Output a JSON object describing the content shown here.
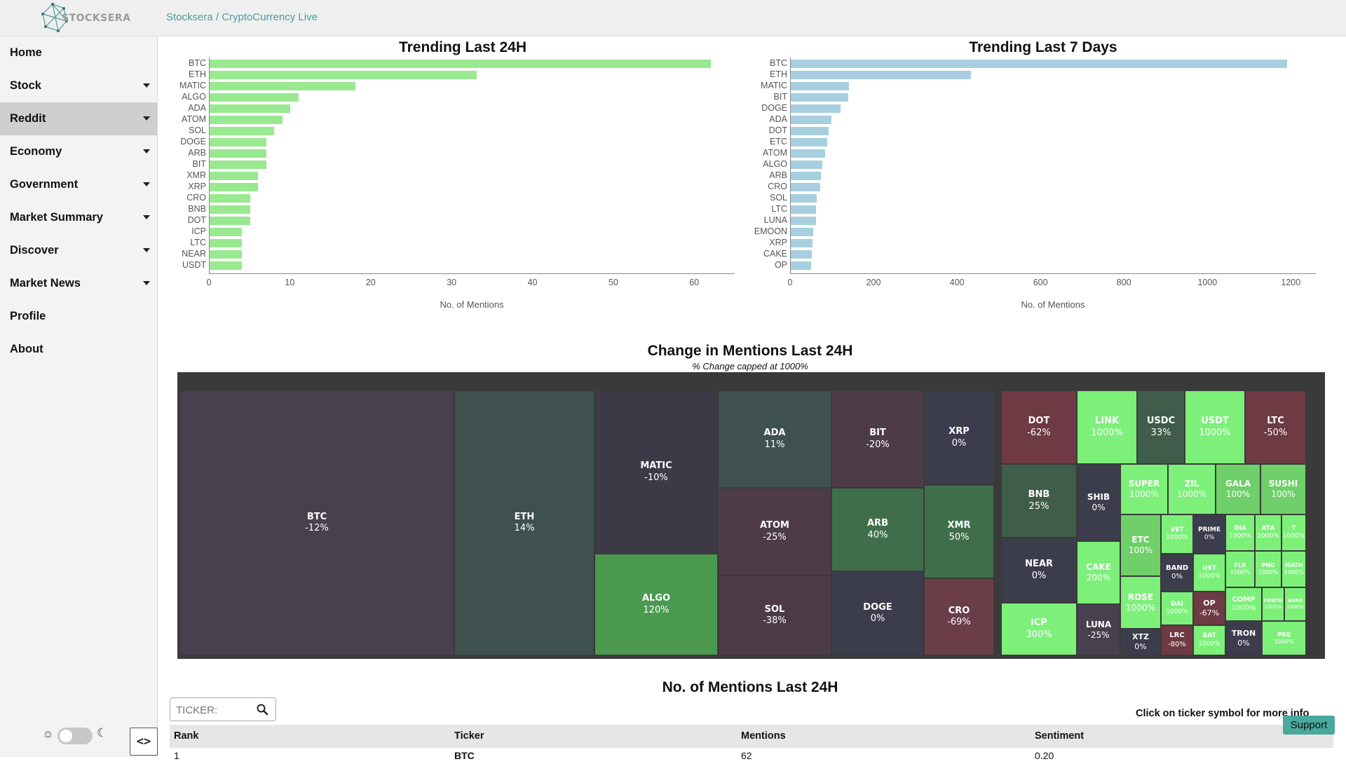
{
  "header": {
    "logo_text": "STOCKSERA",
    "breadcrumb": "Stocksera / CryptoCurrency Live"
  },
  "sidebar": {
    "items": [
      {
        "label": "Home",
        "dropdown": false,
        "active": false
      },
      {
        "label": "Stock",
        "dropdown": true,
        "active": false
      },
      {
        "label": "Reddit",
        "dropdown": true,
        "active": true
      },
      {
        "label": "Economy",
        "dropdown": true,
        "active": false
      },
      {
        "label": "Government",
        "dropdown": true,
        "active": false
      },
      {
        "label": "Market Summary",
        "dropdown": true,
        "active": false
      },
      {
        "label": "Discover",
        "dropdown": true,
        "active": false
      },
      {
        "label": "Market News",
        "dropdown": true,
        "active": false
      },
      {
        "label": "Profile",
        "dropdown": false,
        "active": false
      },
      {
        "label": "About",
        "dropdown": false,
        "active": false
      }
    ],
    "collapse_label": "<>"
  },
  "charts": {
    "chart_data": [
      {
        "type": "bar",
        "orientation": "horizontal",
        "title": "Trending Last 24H",
        "xlabel": "No. of Mentions",
        "ylabel": "",
        "xlim": [
          0,
          65
        ],
        "ticks": [
          0,
          10,
          20,
          30,
          40,
          50,
          60
        ],
        "color": "#98e98f",
        "categories": [
          "BTC",
          "ETH",
          "MATIC",
          "ALGO",
          "ADA",
          "ATOM",
          "SOL",
          "DOGE",
          "ARB",
          "BIT",
          "XMR",
          "XRP",
          "CRO",
          "BNB",
          "DOT",
          "ICP",
          "LTC",
          "NEAR",
          "USDT"
        ],
        "values": [
          62,
          33,
          18,
          11,
          10,
          9,
          8,
          7,
          7,
          7,
          6,
          6,
          5,
          5,
          5,
          4,
          4,
          4,
          4
        ]
      },
      {
        "type": "bar",
        "orientation": "horizontal",
        "title": "Trending Last 7 Days",
        "xlabel": "No. of Mentions",
        "ylabel": "",
        "xlim": [
          0,
          1260
        ],
        "ticks": [
          0,
          200,
          400,
          600,
          800,
          1000,
          1200
        ],
        "color": "#a7cfe0",
        "categories": [
          "BTC",
          "ETH",
          "MATIC",
          "BIT",
          "DOGE",
          "ADA",
          "DOT",
          "ETC",
          "ATOM",
          "ALGO",
          "ARB",
          "CRO",
          "SOL",
          "LTC",
          "LUNA",
          "EMOON",
          "XRP",
          "CAKE",
          "OP"
        ],
        "values": [
          1190,
          432,
          140,
          138,
          120,
          98,
          90,
          88,
          83,
          75,
          72,
          70,
          62,
          60,
          60,
          54,
          52,
          50,
          48
        ]
      }
    ]
  },
  "treemap": {
    "title": "Change in Mentions Last 24H",
    "subtitle": "% Change capped at 1000%",
    "tiles": [
      {
        "t": "BTC",
        "v": "-12%"
      },
      {
        "t": "ETH",
        "v": "14%"
      },
      {
        "t": "MATIC",
        "v": "-10%"
      },
      {
        "t": "ALGO",
        "v": "120%"
      },
      {
        "t": "ADA",
        "v": "11%"
      },
      {
        "t": "ATOM",
        "v": "-25%"
      },
      {
        "t": "SOL",
        "v": "-38%"
      },
      {
        "t": "BIT",
        "v": "-20%"
      },
      {
        "t": "ARB",
        "v": "40%"
      },
      {
        "t": "DOGE",
        "v": "0%"
      },
      {
        "t": "XRP",
        "v": "0%"
      },
      {
        "t": "XMR",
        "v": "50%"
      },
      {
        "t": "CRO",
        "v": "-69%"
      },
      {
        "t": "DOT",
        "v": "-62%"
      },
      {
        "t": "BNB",
        "v": "25%"
      },
      {
        "t": "NEAR",
        "v": "0%"
      },
      {
        "t": "ICP",
        "v": "300%"
      },
      {
        "t": "LINK",
        "v": "1000%"
      },
      {
        "t": "USDC",
        "v": "33%"
      },
      {
        "t": "USDT",
        "v": "1000%"
      },
      {
        "t": "LTC",
        "v": "-50%"
      },
      {
        "t": "SHIB",
        "v": "0%"
      },
      {
        "t": "CAKE",
        "v": "200%"
      },
      {
        "t": "LUNA",
        "v": "-25%"
      },
      {
        "t": "SUPER",
        "v": "1000%"
      },
      {
        "t": "ZIL",
        "v": "1000%"
      },
      {
        "t": "GALA",
        "v": "100%"
      },
      {
        "t": "SUSHI",
        "v": "100%"
      },
      {
        "t": "ETC",
        "v": "100%"
      },
      {
        "t": "ROSE",
        "v": "1000%"
      },
      {
        "t": "XTZ",
        "v": "0%"
      },
      {
        "t": "VET",
        "v": "1000%"
      },
      {
        "t": "BAND",
        "v": "0%"
      },
      {
        "t": "DAI",
        "v": "1000%"
      },
      {
        "t": "LRC",
        "v": "-80%"
      },
      {
        "t": "PRIME",
        "v": "0%"
      },
      {
        "t": "UST",
        "v": "1000%"
      },
      {
        "t": "OP",
        "v": "-67%"
      },
      {
        "t": "BAT",
        "v": "1000%"
      },
      {
        "t": "DIA",
        "v": "1000%"
      },
      {
        "t": "ATA",
        "v": "1000%"
      },
      {
        "t": "T",
        "v": "1000%"
      },
      {
        "t": "FLR",
        "v": "1000%"
      },
      {
        "t": "PNG",
        "v": "1000%"
      },
      {
        "t": "MATH",
        "v": "1000%"
      },
      {
        "t": "COMP",
        "v": "1000%"
      },
      {
        "t": "FORTH",
        "v": "1000%"
      },
      {
        "t": "AVAX",
        "v": "1000%"
      },
      {
        "t": "TRON",
        "v": "0%"
      },
      {
        "t": "PRQ",
        "v": "1000%"
      }
    ]
  },
  "mentions_table": {
    "title": "No. of Mentions Last 24H",
    "search_placeholder": "TICKER:",
    "hint": "Click on ticker symbol for more info",
    "columns": [
      "Rank",
      "Ticker",
      "Mentions",
      "Sentiment"
    ],
    "rows": [
      [
        "1",
        "BTC",
        "62",
        "0.20"
      ]
    ]
  },
  "support_label": "Support"
}
